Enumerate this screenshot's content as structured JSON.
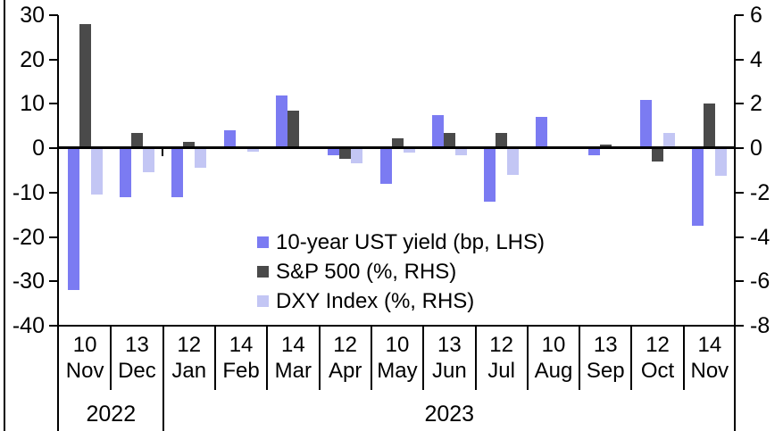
{
  "chart_data": {
    "type": "bar",
    "title": "",
    "xlabel": "",
    "ylabel_left": "bp",
    "ylabel_right": "%",
    "grid": false,
    "legend_position": "center-inside",
    "categories": [
      {
        "day": "10",
        "month": "Nov"
      },
      {
        "day": "13",
        "month": "Dec"
      },
      {
        "day": "12",
        "month": "Jan"
      },
      {
        "day": "14",
        "month": "Feb"
      },
      {
        "day": "14",
        "month": "Mar"
      },
      {
        "day": "12",
        "month": "Apr"
      },
      {
        "day": "10",
        "month": "May"
      },
      {
        "day": "13",
        "month": "Jun"
      },
      {
        "day": "12",
        "month": "Jul"
      },
      {
        "day": "10",
        "month": "Aug"
      },
      {
        "day": "13",
        "month": "Sep"
      },
      {
        "day": "12",
        "month": "Oct"
      },
      {
        "day": "14",
        "month": "Nov"
      }
    ],
    "year_groups": [
      {
        "label": "2022",
        "start": 0,
        "count": 2
      },
      {
        "label": "2023",
        "start": 2,
        "count": 11
      }
    ],
    "left_axis": {
      "max": 30,
      "min": -40,
      "ticks": [
        30,
        20,
        10,
        0,
        -10,
        -20,
        -30,
        -40
      ]
    },
    "right_axis": {
      "max": 6,
      "min": -8,
      "ticks": [
        6,
        4,
        2,
        0,
        -2,
        -4,
        -6,
        -8
      ]
    },
    "rhs_to_lhs_scale": 5,
    "series": [
      {
        "name": "10-year UST yield (bp, LHS)",
        "key": "ust",
        "axis": "LHS",
        "color": "#7b7bf2",
        "values": [
          -32,
          -11,
          -11,
          4,
          12,
          -1.5,
          -8,
          7.4,
          -12,
          7,
          -1.6,
          11,
          -17.5
        ]
      },
      {
        "name": "S&P 500 (%, RHS)",
        "key": "spx",
        "axis": "RHS",
        "color": "#4a4a4a",
        "values": [
          5.6,
          0.7,
          0.3,
          0,
          1.7,
          -0.5,
          0.45,
          0.7,
          0.7,
          0,
          0.15,
          -0.6,
          2
        ]
      },
      {
        "name": "DXY Index (%, RHS)",
        "key": "dxy",
        "axis": "RHS",
        "color": "#c3c6f4",
        "values": [
          -2.1,
          -1.1,
          -0.9,
          -0.15,
          0,
          -0.7,
          -0.2,
          -0.3,
          -1.2,
          0,
          0,
          0.7,
          -1.25
        ]
      }
    ]
  }
}
